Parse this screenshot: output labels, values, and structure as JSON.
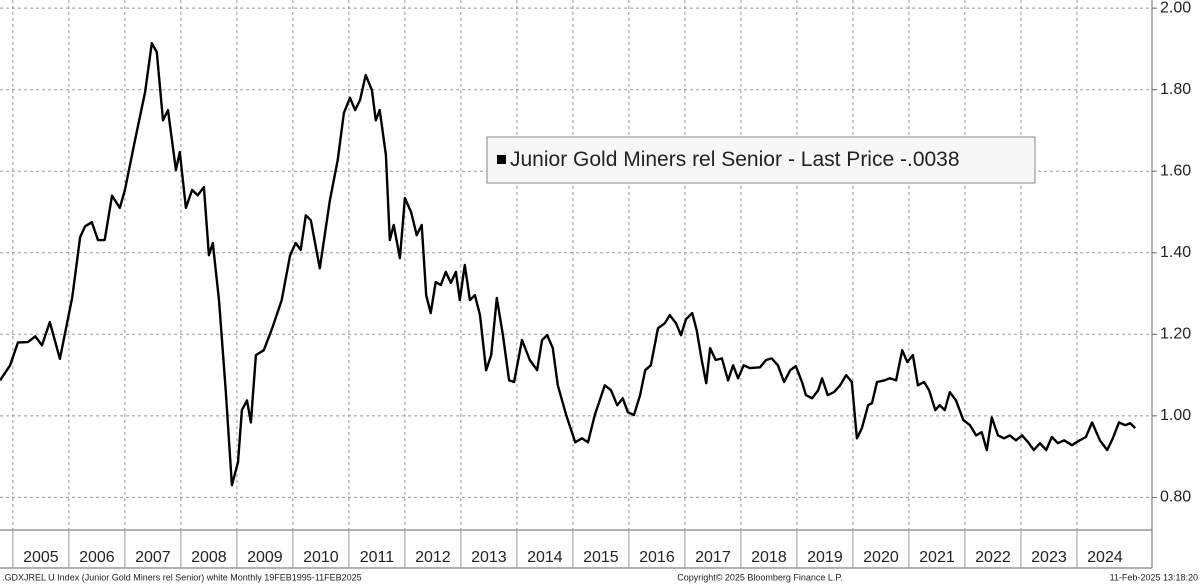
{
  "chart_data": {
    "type": "line",
    "series": [
      {
        "name": "Junior Gold Miners rel Senior",
        "color": "#000000",
        "x": [
          2004.77,
          2004.95,
          2005.09,
          2005.27,
          2005.4,
          2005.52,
          2005.66,
          2005.84,
          2006.06,
          2006.2,
          2006.29,
          2006.41,
          2006.52,
          2006.64,
          2006.77,
          2006.91,
          2007.0,
          2007.18,
          2007.36,
          2007.48,
          2007.57,
          2007.68,
          2007.77,
          2007.91,
          2007.98,
          2008.09,
          2008.2,
          2008.3,
          2008.41,
          2008.5,
          2008.57,
          2008.68,
          2008.8,
          2008.91,
          2009.02,
          2009.09,
          2009.18,
          2009.25,
          2009.34,
          2009.48,
          2009.63,
          2009.8,
          2009.95,
          2010.05,
          2010.14,
          2010.23,
          2010.32,
          2010.48,
          2010.66,
          2010.8,
          2010.91,
          2011.02,
          2011.11,
          2011.2,
          2011.3,
          2011.41,
          2011.48,
          2011.55,
          2011.66,
          2011.73,
          2011.8,
          2011.91,
          2012.0,
          2012.11,
          2012.21,
          2012.3,
          2012.38,
          2012.46,
          2012.55,
          2012.64,
          2012.73,
          2012.82,
          2012.91,
          2012.98,
          2013.07,
          2013.16,
          2013.25,
          2013.34,
          2013.45,
          2013.54,
          2013.64,
          2013.75,
          2013.86,
          2013.95,
          2014.09,
          2014.23,
          2014.36,
          2014.45,
          2014.54,
          2014.64,
          2014.73,
          2014.88,
          2015.04,
          2015.16,
          2015.27,
          2015.39,
          2015.57,
          2015.68,
          2015.79,
          2015.89,
          2015.98,
          2016.09,
          2016.2,
          2016.29,
          2016.39,
          2016.52,
          2016.64,
          2016.73,
          2016.84,
          2016.93,
          2017.02,
          2017.13,
          2017.21,
          2017.3,
          2017.38,
          2017.45,
          2017.55,
          2017.66,
          2017.77,
          2017.86,
          2017.95,
          2018.05,
          2018.16,
          2018.34,
          2018.45,
          2018.55,
          2018.66,
          2018.77,
          2018.88,
          2018.98,
          2019.09,
          2019.16,
          2019.27,
          2019.38,
          2019.45,
          2019.55,
          2019.66,
          2019.77,
          2019.88,
          2019.98,
          2020.07,
          2020.16,
          2020.27,
          2020.34,
          2020.43,
          2020.56,
          2020.66,
          2020.77,
          2020.88,
          2020.97,
          2021.07,
          2021.16,
          2021.27,
          2021.36,
          2021.47,
          2021.55,
          2021.64,
          2021.73,
          2021.84,
          2021.97,
          2022.09,
          2022.2,
          2022.3,
          2022.39,
          2022.48,
          2022.59,
          2022.7,
          2022.8,
          2022.91,
          2023.02,
          2023.13,
          2023.23,
          2023.34,
          2023.45,
          2023.55,
          2023.66,
          2023.77,
          2023.91,
          2024.05,
          2024.16,
          2024.27,
          2024.41,
          2024.54,
          2024.64,
          2024.75,
          2024.86,
          2024.95,
          2025.04
        ],
        "values": [
          1.087,
          1.124,
          1.18,
          1.181,
          1.195,
          1.173,
          1.23,
          1.14,
          1.29,
          1.438,
          1.465,
          1.475,
          1.431,
          1.431,
          1.54,
          1.51,
          1.554,
          1.676,
          1.794,
          1.914,
          1.892,
          1.725,
          1.75,
          1.603,
          1.647,
          1.51,
          1.554,
          1.541,
          1.561,
          1.394,
          1.424,
          1.284,
          1.063,
          0.83,
          0.886,
          1.014,
          1.038,
          0.984,
          1.149,
          1.161,
          1.215,
          1.284,
          1.394,
          1.424,
          1.407,
          1.492,
          1.48,
          1.362,
          1.529,
          1.627,
          1.743,
          1.78,
          1.75,
          1.775,
          1.836,
          1.799,
          1.725,
          1.75,
          1.64,
          1.431,
          1.468,
          1.387,
          1.534,
          1.5,
          1.443,
          1.468,
          1.296,
          1.252,
          1.328,
          1.321,
          1.353,
          1.326,
          1.353,
          1.284,
          1.37,
          1.284,
          1.296,
          1.247,
          1.112,
          1.149,
          1.289,
          1.198,
          1.087,
          1.083,
          1.186,
          1.137,
          1.112,
          1.186,
          1.198,
          1.166,
          1.075,
          1.002,
          0.935,
          0.945,
          0.935,
          1.002,
          1.075,
          1.063,
          1.026,
          1.043,
          1.009,
          1.002,
          1.051,
          1.112,
          1.124,
          1.215,
          1.227,
          1.247,
          1.227,
          1.198,
          1.237,
          1.252,
          1.21,
          1.137,
          1.08,
          1.166,
          1.137,
          1.141,
          1.087,
          1.124,
          1.092,
          1.124,
          1.117,
          1.119,
          1.137,
          1.141,
          1.124,
          1.083,
          1.112,
          1.122,
          1.083,
          1.051,
          1.043,
          1.063,
          1.092,
          1.051,
          1.058,
          1.075,
          1.1,
          1.083,
          0.945,
          0.97,
          1.026,
          1.031,
          1.083,
          1.087,
          1.092,
          1.087,
          1.161,
          1.132,
          1.149,
          1.075,
          1.083,
          1.063,
          1.014,
          1.026,
          1.014,
          1.058,
          1.038,
          0.99,
          0.977,
          0.952,
          0.96,
          0.916,
          0.996,
          0.952,
          0.945,
          0.952,
          0.94,
          0.952,
          0.935,
          0.916,
          0.933,
          0.916,
          0.948,
          0.933,
          0.94,
          0.928,
          0.94,
          0.948,
          0.984,
          0.94,
          0.916,
          0.945,
          0.984,
          0.977,
          0.982,
          0.97
        ]
      }
    ],
    "legend_note": "- Last Price  -.0038",
    "xlim": [
      2004.77,
      2025.34
    ],
    "xticks": [
      2005,
      2006,
      2007,
      2008,
      2009,
      2010,
      2011,
      2012,
      2013,
      2014,
      2015,
      2016,
      2017,
      2018,
      2019,
      2020,
      2021,
      2022,
      2023,
      2024
    ],
    "ylim": [
      0.72,
      2.02
    ],
    "yticks": [
      {
        "value": 0.8,
        "label": "0.80"
      },
      {
        "value": 1.0,
        "label": "1.00"
      },
      {
        "value": 1.2,
        "label": "1.20"
      },
      {
        "value": 1.4,
        "label": "1.40"
      },
      {
        "value": 1.6,
        "label": "1.60"
      },
      {
        "value": 1.8,
        "label": "1.80"
      },
      {
        "value": 2.0,
        "label": "2.00"
      }
    ],
    "grid": true,
    "footer_left": ".GDXJREL U Index (Junior Gold Miners rel Senior) white  Monthly 19FEB1995-11FEB2025",
    "footer_center": "Copyright© 2025 Bloomberg Finance L.P.",
    "footer_right": "11-Feb-2025 13:18:20"
  }
}
